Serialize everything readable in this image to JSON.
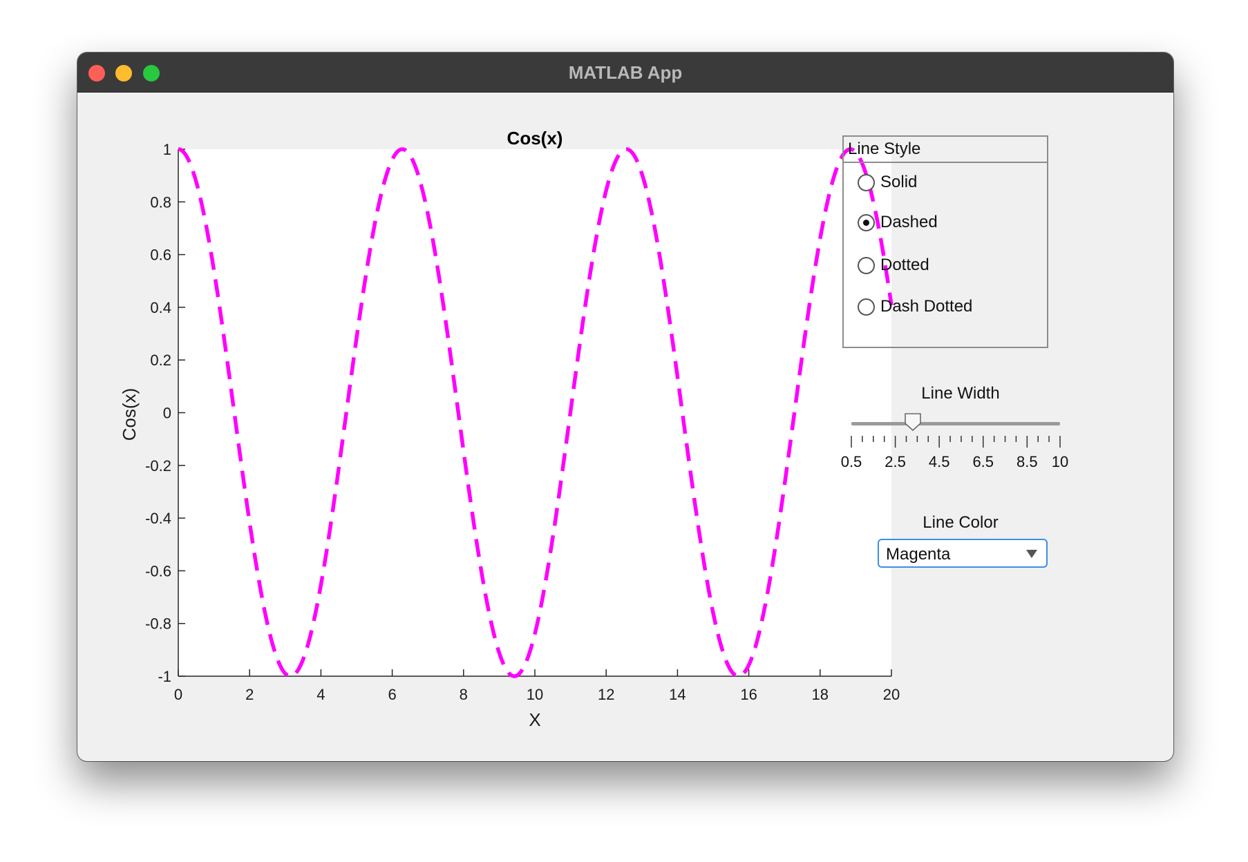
{
  "window": {
    "title": "MATLAB App"
  },
  "chart_data": {
    "type": "line",
    "title": "Cos(x)",
    "xlabel": "X",
    "ylabel": "Cos(x)",
    "xlim": [
      0,
      20
    ],
    "ylim": [
      -1,
      1
    ],
    "x_ticks": [
      "0",
      "2",
      "4",
      "6",
      "8",
      "10",
      "12",
      "14",
      "16",
      "18",
      "20"
    ],
    "y_ticks": [
      "1",
      "0.8",
      "0.6",
      "0.4",
      "0.2",
      "0",
      "-0.2",
      "-0.4",
      "-0.6",
      "-0.8",
      "-1"
    ],
    "grid": false,
    "series": [
      {
        "function": "cos(x)",
        "x_start": 0,
        "x_end": 20,
        "color": "#ff00ff",
        "line_style": "dashed"
      }
    ]
  },
  "line_style_panel": {
    "title": "Line Style",
    "options": [
      "Solid",
      "Dashed",
      "Dotted",
      "Dash Dotted"
    ],
    "selected": "Dashed"
  },
  "line_width": {
    "label": "Line Width",
    "min": 0.5,
    "max": 10,
    "value": 3.3,
    "tick_labels": [
      "0.5",
      "2.5",
      "4.5",
      "6.5",
      "8.5",
      "10"
    ]
  },
  "line_color": {
    "label": "Line Color",
    "value": "Magenta"
  }
}
